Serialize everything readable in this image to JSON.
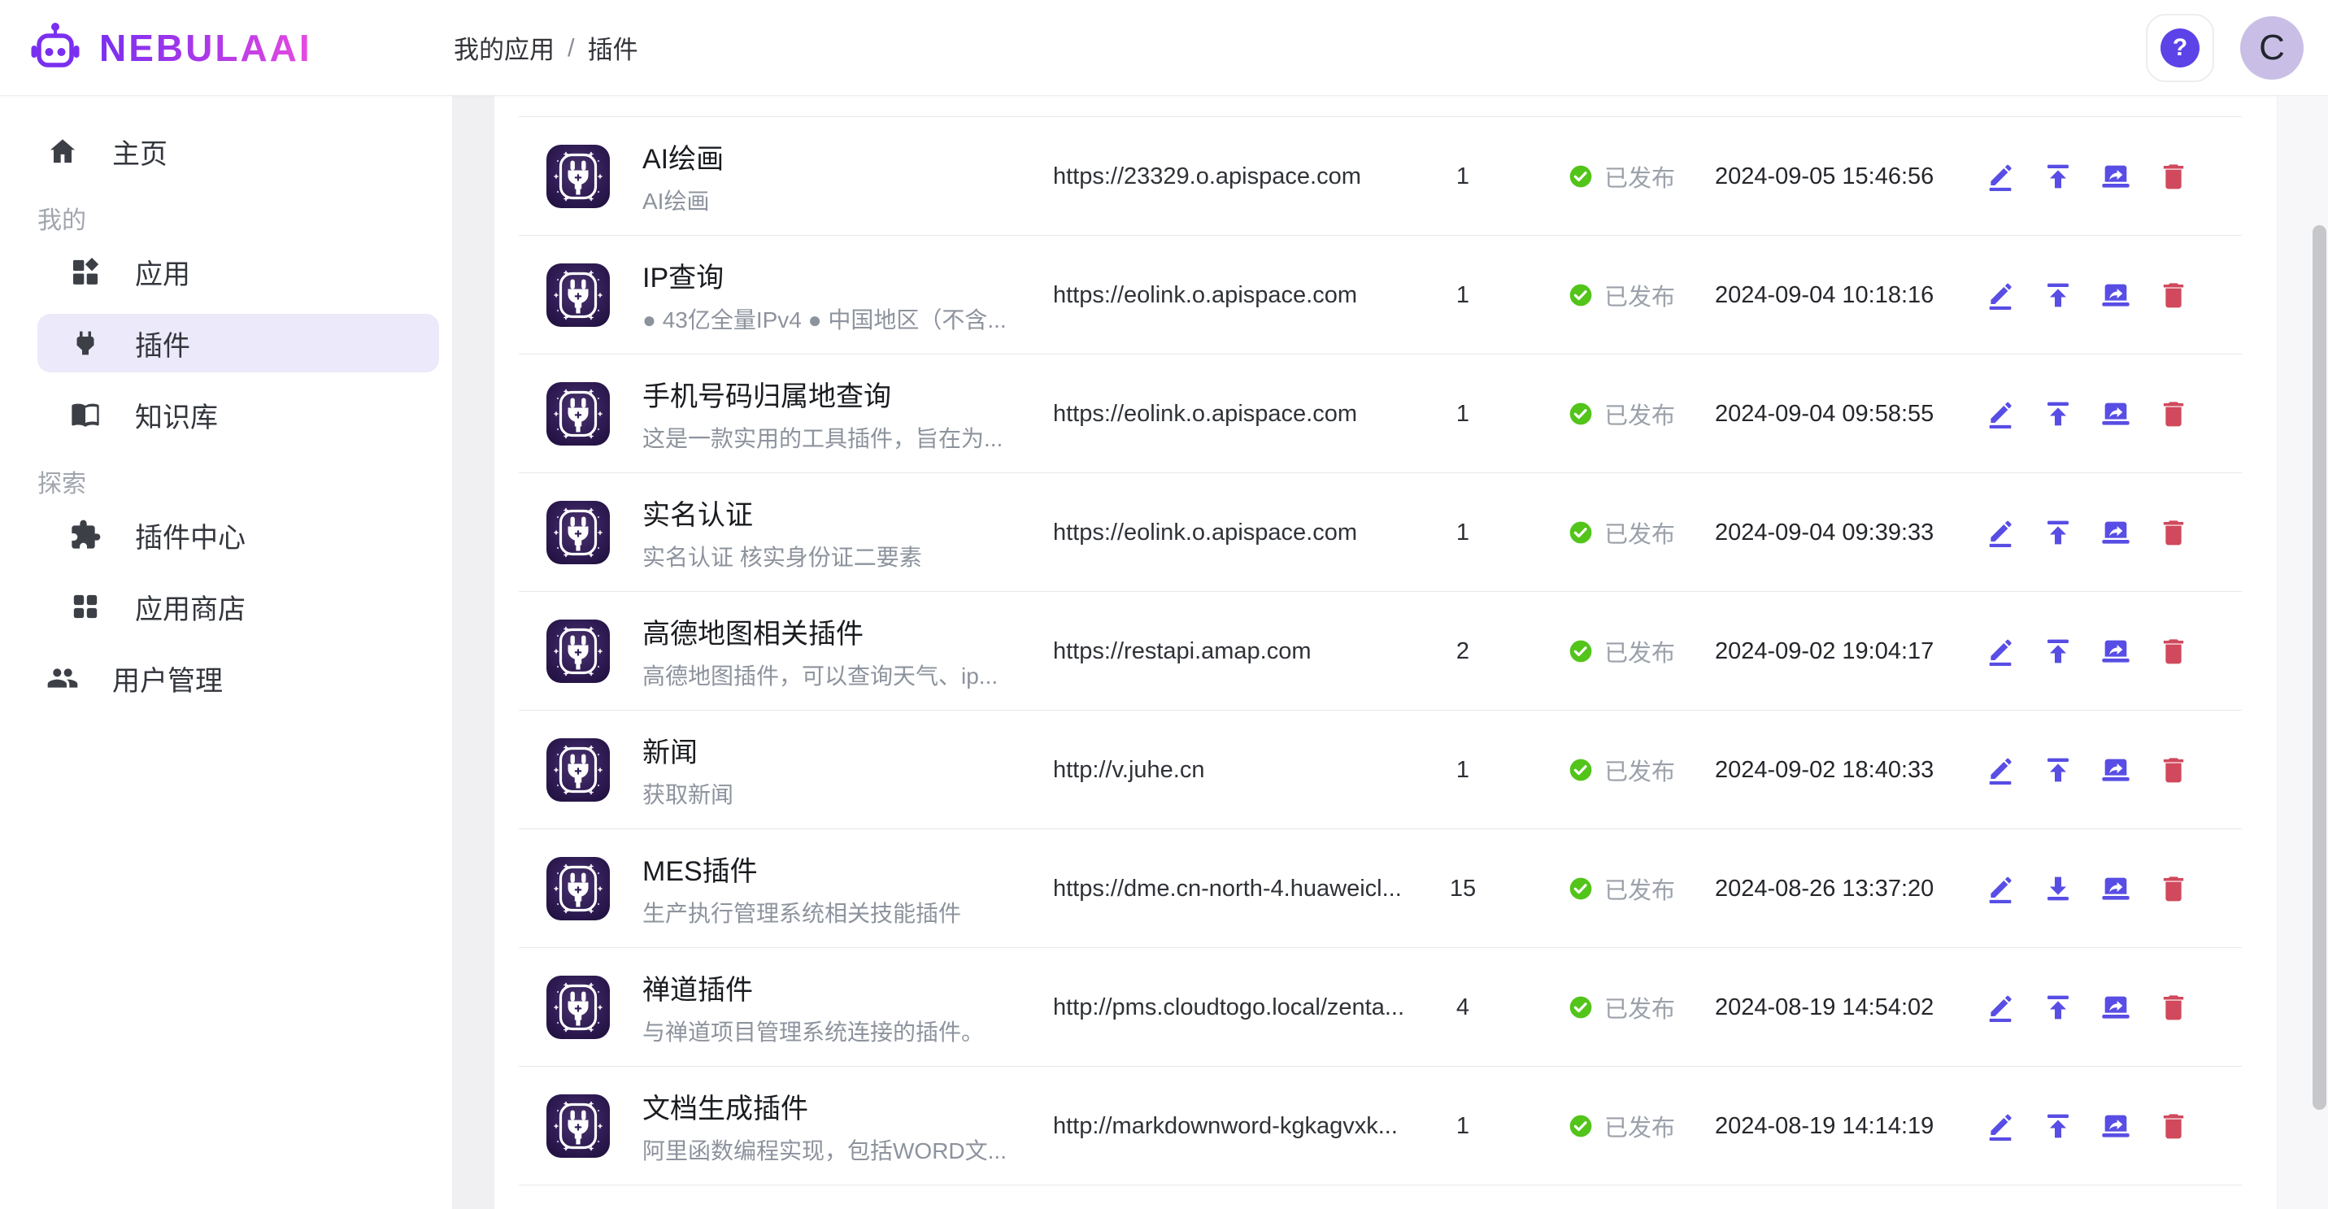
{
  "brand": {
    "name": "NEBULAAI",
    "logo_icon": "robot-icon"
  },
  "breadcrumb": {
    "parent": "我的应用",
    "separator": "/",
    "current": "插件"
  },
  "topbar": {
    "help_icon": "question-mark-icon",
    "avatar_letter": "C"
  },
  "sidebar": {
    "home": {
      "label": "主页",
      "icon": "home-icon"
    },
    "sections": [
      {
        "label": "我的",
        "items": [
          {
            "label": "应用",
            "icon": "widgets-icon",
            "active": false
          },
          {
            "label": "插件",
            "icon": "plug-icon",
            "active": true
          },
          {
            "label": "知识库",
            "icon": "book-icon",
            "active": false
          }
        ]
      },
      {
        "label": "探索",
        "items": [
          {
            "label": "插件中心",
            "icon": "puzzle-icon",
            "active": false
          },
          {
            "label": "应用商店",
            "icon": "apps-grid-icon",
            "active": false
          }
        ]
      }
    ],
    "footer_item": {
      "label": "用户管理",
      "icon": "users-icon"
    }
  },
  "table": {
    "rows": [
      {
        "name": "AI绘画",
        "description": "AI绘画",
        "url": "https://23329.o.apispace.com",
        "count": "1",
        "status": "已发布",
        "date": "2024-09-05 15:46:56",
        "actions": [
          "edit",
          "publish",
          "share",
          "delete"
        ]
      },
      {
        "name": "IP查询",
        "description": "● 43亿全量IPv4 ● 中国地区（不含...",
        "url": "https://eolink.o.apispace.com",
        "count": "1",
        "status": "已发布",
        "date": "2024-09-04 10:18:16",
        "actions": [
          "edit",
          "publish",
          "share",
          "delete"
        ]
      },
      {
        "name": "手机号码归属地查询",
        "description": "这是一款实用的工具插件，旨在为...",
        "url": "https://eolink.o.apispace.com",
        "count": "1",
        "status": "已发布",
        "date": "2024-09-04 09:58:55",
        "actions": [
          "edit",
          "publish",
          "share",
          "delete"
        ]
      },
      {
        "name": "实名认证",
        "description": "实名认证 核实身份证二要素",
        "url": "https://eolink.o.apispace.com",
        "count": "1",
        "status": "已发布",
        "date": "2024-09-04 09:39:33",
        "actions": [
          "edit",
          "publish",
          "share",
          "delete"
        ]
      },
      {
        "name": "高德地图相关插件",
        "description": "高德地图插件，可以查询天气、ip...",
        "url": "https://restapi.amap.com",
        "count": "2",
        "status": "已发布",
        "date": "2024-09-02 19:04:17",
        "actions": [
          "edit",
          "publish",
          "share",
          "delete"
        ]
      },
      {
        "name": "新闻",
        "description": "获取新闻",
        "url": "http://v.juhe.cn",
        "count": "1",
        "status": "已发布",
        "date": "2024-09-02 18:40:33",
        "actions": [
          "edit",
          "publish",
          "share",
          "delete"
        ]
      },
      {
        "name": "MES插件",
        "description": "生产执行管理系统相关技能插件",
        "url": "https://dme.cn-north-4.huaweicl...",
        "count": "15",
        "status": "已发布",
        "date": "2024-08-26 13:37:20",
        "actions": [
          "edit",
          "download",
          "share",
          "delete"
        ]
      },
      {
        "name": "禅道插件",
        "description": "与禅道项目管理系统连接的插件。",
        "url": "http://pms.cloudtogo.local/zenta...",
        "count": "4",
        "status": "已发布",
        "date": "2024-08-19 14:54:02",
        "actions": [
          "edit",
          "publish",
          "share",
          "delete"
        ]
      },
      {
        "name": "文档生成插件",
        "description": "阿里函数编程实现，包括WORD文...",
        "url": "http://markdownword-kgkagvxk...",
        "count": "1",
        "status": "已发布",
        "date": "2024-08-19 14:14:19",
        "actions": [
          "edit",
          "publish",
          "share",
          "delete"
        ]
      }
    ],
    "status_icon": "check-circle-icon",
    "plugin_tile_icon": "plug-tile-icon"
  },
  "colors": {
    "accent": "#5b43e8",
    "action": "#584de4",
    "danger": "#d0495c",
    "success": "#52c41a",
    "active_item_bg": "#ece9fb",
    "brand_gradient_start": "#7a2ff0",
    "brand_gradient_end": "#e84be0"
  }
}
